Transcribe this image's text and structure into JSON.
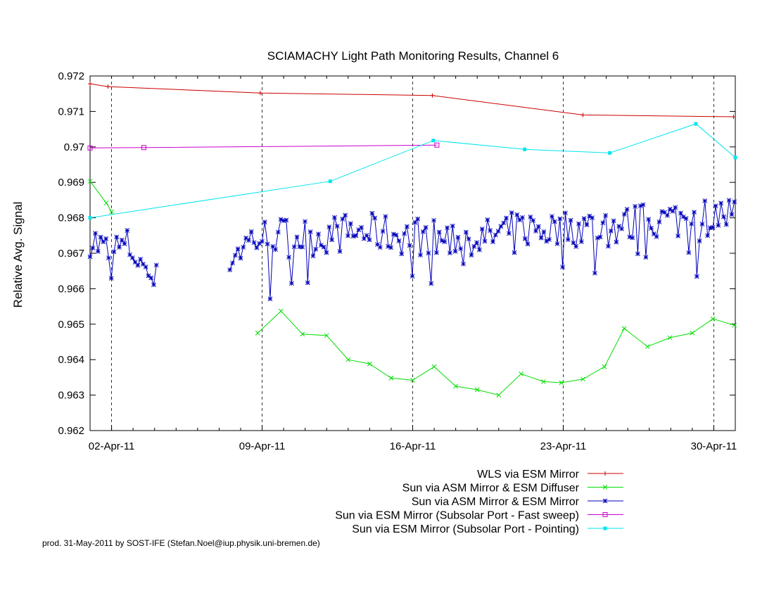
{
  "chart_data": {
    "type": "line",
    "title": "SCIAMACHY Light Path Monitoring Results, Channel 6",
    "ylabel": "Relative Avg. Signal",
    "xlabel": "",
    "ylim": [
      0.962,
      0.972
    ],
    "xlim": [
      "2011-04-01 00:00",
      "2011-05-01 00:00"
    ],
    "grid": "vertical dashed lines at week ticks",
    "legend_position": "below plot, right-aligned",
    "y_ticks": [
      "0.962",
      "0.963",
      "0.964",
      "0.965",
      "0.966",
      "0.967",
      "0.968",
      "0.969",
      "0.97",
      "0.971",
      "0.972"
    ],
    "x_ticks": [
      {
        "x": "2011-04-02",
        "label": "02-Apr-11"
      },
      {
        "x": "2011-04-09",
        "label": "09-Apr-11"
      },
      {
        "x": "2011-04-16",
        "label": "16-Apr-11"
      },
      {
        "x": "2011-04-23",
        "label": "23-Apr-11"
      },
      {
        "x": "2011-04-30",
        "label": "30-Apr-11"
      }
    ],
    "series": [
      {
        "name": "WLS via ESM Mirror",
        "color": "#cc0000",
        "marker": "plus",
        "points": [
          [
            "2011-04-01 00:00",
            0.97178
          ],
          [
            "2011-04-01 20:00",
            0.9717
          ],
          [
            "2011-04-08 22:00",
            0.97152
          ],
          [
            "2011-04-16 22:00",
            0.97145
          ],
          [
            "2011-04-23 22:00",
            0.9709
          ],
          [
            "2011-04-30 22:00",
            0.97085
          ]
        ]
      },
      {
        "name": "Sun via ASM Mirror & ESM Diffuser",
        "color": "#00dd00",
        "marker": "cross",
        "segments": [
          [
            [
              "2011-04-01 00:00",
              0.96903
            ],
            [
              "2011-04-01 18:00",
              0.96842
            ],
            [
              "2011-04-02 00:00",
              0.96817
            ]
          ],
          [
            [
              "2011-04-08 19:00",
              0.96475
            ],
            [
              "2011-04-09 21:00",
              0.96537
            ],
            [
              "2011-04-10 21:00",
              0.96472
            ],
            [
              "2011-04-12 00:00",
              0.96468
            ],
            [
              "2011-04-13 00:00",
              0.964
            ],
            [
              "2011-04-14 00:00",
              0.96388
            ],
            [
              "2011-04-15 00:00",
              0.96348
            ],
            [
              "2011-04-16 00:00",
              0.96342
            ],
            [
              "2011-04-17 00:00",
              0.9638
            ],
            [
              "2011-04-18 00:00",
              0.96325
            ],
            [
              "2011-04-19 00:00",
              0.96315
            ],
            [
              "2011-04-20 00:00",
              0.963
            ],
            [
              "2011-04-21 01:00",
              0.9636
            ],
            [
              "2011-04-22 02:00",
              0.96338
            ],
            [
              "2011-04-22 22:00",
              0.96335
            ],
            [
              "2011-04-23 22:00",
              0.96345
            ],
            [
              "2011-04-24 22:00",
              0.9638
            ],
            [
              "2011-04-25 20:00",
              0.96488
            ],
            [
              "2011-04-26 22:00",
              0.96437
            ],
            [
              "2011-04-27 23:00",
              0.96462
            ],
            [
              "2011-04-29 00:00",
              0.96475
            ],
            [
              "2011-04-29 23:00",
              0.96515
            ],
            [
              "2011-04-30 23:00",
              0.96497
            ]
          ]
        ]
      },
      {
        "name": "Sun via ASM Mirror & ESM Mirror",
        "color": "#0000bb",
        "marker": "star",
        "note": "dense daily samples, approx. 8 per day; gap from 04 Apr to 07 Apr",
        "segments": [
          {
            "start": "2011-04-01 00:00",
            "end": "2011-04-04 02:00",
            "base": [
              0.96745,
              0.9672,
              0.967,
              0.96715,
              0.9672,
              0.9669,
              0.9665,
              0.9662
            ]
          },
          {
            "start": "2011-04-07 12:00",
            "end": "2011-04-30 23:00",
            "base": [
              0.9669,
              0.9674,
              0.9675,
              0.96748,
              0.96745,
              0.96755,
              0.9676,
              0.96758,
              0.9675,
              0.96752,
              0.9674,
              0.96745,
              0.96738,
              0.9676,
              0.9677,
              0.96768,
              0.9677,
              0.96775,
              0.96772,
              0.9678,
              0.9679,
              0.96795,
              0.968,
              0.96805,
              0.9681
            ]
          }
        ]
      },
      {
        "name": "Sun via ESM Mirror (Subsolar Port - Fast sweep)",
        "color": "#cc00cc",
        "marker": "square",
        "points": [
          [
            "2011-04-01 00:00",
            0.96997
          ],
          [
            "2011-04-03 12:00",
            0.96998
          ],
          [
            "2011-04-17 03:00",
            0.97005
          ]
        ]
      },
      {
        "name": "Sun via ESM Mirror (Subsolar Port - Pointing)",
        "color": "#00e5ee",
        "marker": "filled-square",
        "points": [
          [
            "2011-04-01 00:00",
            0.968
          ],
          [
            "2011-04-12 04:00",
            0.96903
          ],
          [
            "2011-04-16 23:00",
            0.97018
          ],
          [
            "2011-04-21 05:00",
            0.96993
          ],
          [
            "2011-04-25 04:00",
            0.96983
          ],
          [
            "2011-04-29 04:00",
            0.97065
          ],
          [
            "2011-05-01 00:00",
            0.9697
          ]
        ]
      }
    ]
  },
  "footer": "prod. 31-May-2011 by SOST-IFE (Stefan.Noel@iup.physik.uni-bremen.de)"
}
